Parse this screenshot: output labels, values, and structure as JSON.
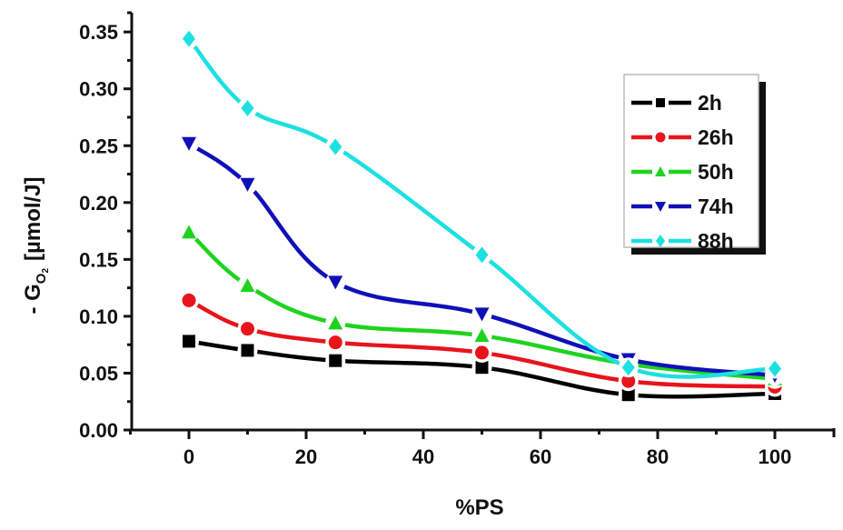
{
  "chart_data": {
    "type": "line",
    "title": "",
    "xlabel": "%PS",
    "ylabel": "- G_O2 [µmol/J]",
    "ylabel_parts": {
      "prefix": "- G",
      "subscript": "O",
      "subsubscript": "2",
      "units": "[µmol/J]"
    },
    "xlim": [
      -10,
      110
    ],
    "ylim": [
      0.0,
      0.37
    ],
    "x_ticks": [
      0,
      20,
      40,
      60,
      80,
      100
    ],
    "x_tick_labels": [
      "0",
      "20",
      "40",
      "60",
      "80",
      "100"
    ],
    "y_ticks": [
      0.0,
      0.05,
      0.1,
      0.15,
      0.2,
      0.25,
      0.3,
      0.35
    ],
    "y_tick_labels": [
      "0.00",
      "0.05",
      "0.10",
      "0.15",
      "0.20",
      "0.25",
      "0.30",
      "0.35"
    ],
    "grid": false,
    "legend_position": "upper right",
    "x": [
      0,
      10,
      25,
      50,
      75,
      100
    ],
    "series": [
      {
        "name": "2h",
        "color": "#000000",
        "marker": "square",
        "values": [
          0.078,
          0.07,
          0.061,
          0.055,
          0.031,
          0.032
        ]
      },
      {
        "name": "26h",
        "color": "#e8141c",
        "marker": "circle",
        "values": [
          0.114,
          0.089,
          0.077,
          0.068,
          0.043,
          0.038
        ]
      },
      {
        "name": "50h",
        "color": "#1ed31e",
        "marker": "triangle-up",
        "values": [
          0.174,
          0.127,
          0.094,
          0.083,
          0.058,
          0.045
        ]
      },
      {
        "name": "74h",
        "color": "#1010b8",
        "marker": "triangle-down",
        "values": [
          0.252,
          0.216,
          0.13,
          0.102,
          0.062,
          0.048
        ]
      },
      {
        "name": "88h",
        "color": "#1de0e0",
        "marker": "diamond",
        "values": [
          0.344,
          0.283,
          0.249,
          0.154,
          0.055,
          0.054
        ]
      }
    ]
  }
}
